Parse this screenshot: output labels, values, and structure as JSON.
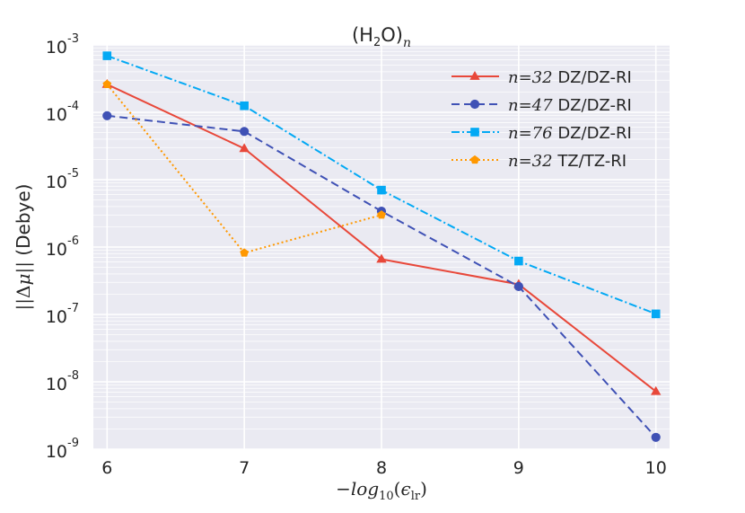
{
  "chart_data": {
    "type": "line",
    "title": "(H₂O)ₙ",
    "xlabel": "−log₁₀(ϵlr)",
    "ylabel": "||Δμ|| (Debye)",
    "xlim": [
      5.9,
      10.1
    ],
    "ylim": [
      1e-09,
      0.001
    ],
    "yscale": "log",
    "grid": true,
    "legend_position": "top-right",
    "x_ticks": [
      "6",
      "7",
      "8",
      "9",
      "10"
    ],
    "y_ticks": [
      {
        "base": "10",
        "exp": "-9"
      },
      {
        "base": "10",
        "exp": "-8"
      },
      {
        "base": "10",
        "exp": "-7"
      },
      {
        "base": "10",
        "exp": "-6"
      },
      {
        "base": "10",
        "exp": "-5"
      },
      {
        "base": "10",
        "exp": "-4"
      },
      {
        "base": "10",
        "exp": "-3"
      }
    ],
    "series": [
      {
        "name": "n=32 DZ/DZ-RI",
        "legend_math": "n=32",
        "legend_text": "DZ/DZ-RI",
        "color": "#e8483a",
        "style": "solid",
        "marker": "triangle",
        "x": [
          6,
          7,
          8,
          9,
          10
        ],
        "y": [
          0.00026,
          2.9e-05,
          6.6e-07,
          2.8e-07,
          7.2e-09
        ]
      },
      {
        "name": "n=47 DZ/DZ-RI",
        "legend_math": "n=47",
        "legend_text": "DZ/DZ-RI",
        "color": "#3f51b5",
        "style": "dashed",
        "marker": "circle",
        "x": [
          6,
          7,
          8,
          9,
          10
        ],
        "y": [
          8.9e-05,
          5.2e-05,
          3.4e-06,
          2.6e-07,
          1.5e-09
        ]
      },
      {
        "name": "n=76 DZ/DZ-RI",
        "legend_math": "n=76",
        "legend_text": "DZ/DZ-RI",
        "color": "#03a9f4",
        "style": "dashdot",
        "marker": "square",
        "x": [
          6,
          7,
          8,
          9,
          10
        ],
        "y": [
          0.00069,
          0.000125,
          7e-06,
          6.2e-07,
          1.02e-07
        ]
      },
      {
        "name": "n=32 TZ/TZ-RI",
        "legend_math": "n=32",
        "legend_text": "TZ/TZ-RI",
        "color": "#ff9800",
        "style": "dotted",
        "marker": "pentagon",
        "x": [
          6,
          7,
          8
        ],
        "y": [
          0.00026,
          8.2e-07,
          3e-06
        ]
      }
    ]
  }
}
